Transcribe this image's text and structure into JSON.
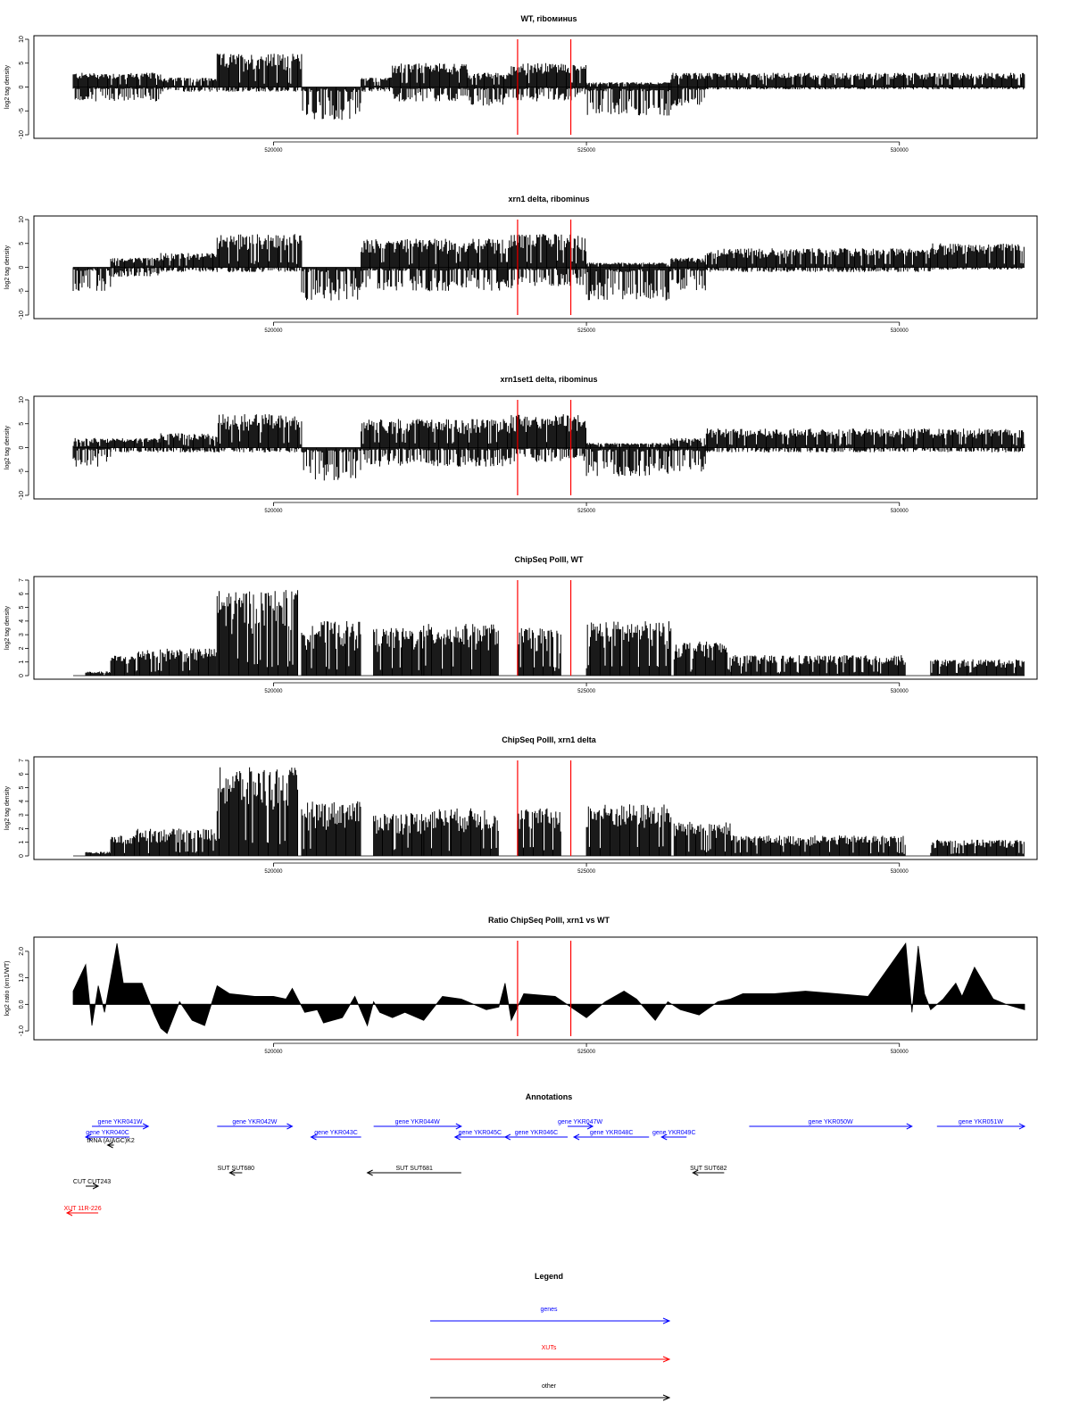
{
  "colors": {
    "gene": "#0000ff",
    "xut": "#ff0000",
    "other": "#000000",
    "marker": "#ff0000",
    "signal": "#000000"
  },
  "x_range": [
    516800,
    532000
  ],
  "x_ticks": [
    520000,
    525000,
    530000
  ],
  "markers": [
    523900,
    524750
  ],
  "chart_data": [
    {
      "type": "bar",
      "title": "WT, riboминus",
      "ylabel": "log2 tag density",
      "ylim": [
        -10,
        10
      ],
      "yticks": [
        -10,
        -5,
        0,
        5,
        10
      ],
      "segments": [
        [
          516800,
          518200,
          3,
          -3
        ],
        [
          518200,
          519100,
          2,
          -1
        ],
        [
          519100,
          520450,
          7,
          -1
        ],
        [
          520450,
          521400,
          0,
          -7
        ],
        [
          521400,
          521900,
          2,
          -1
        ],
        [
          521900,
          523100,
          5,
          -3
        ],
        [
          523100,
          523800,
          3,
          -4
        ],
        [
          523800,
          525000,
          5,
          -3
        ],
        [
          525000,
          526350,
          1,
          -6
        ],
        [
          526350,
          526900,
          3,
          -4
        ],
        [
          526900,
          532000,
          3,
          -0.5
        ]
      ]
    },
    {
      "type": "bar",
      "title": "xrn1 delta, ribominus",
      "ylabel": "log2 tag density",
      "ylim": [
        -10,
        10
      ],
      "yticks": [
        -10,
        -5,
        0,
        5,
        10
      ],
      "segments": [
        [
          516800,
          517400,
          0,
          -5
        ],
        [
          517400,
          518200,
          2,
          -2
        ],
        [
          518200,
          519100,
          3,
          -1
        ],
        [
          519100,
          520450,
          7,
          -1
        ],
        [
          520450,
          521400,
          0,
          -7
        ],
        [
          521400,
          523800,
          6,
          -5
        ],
        [
          523800,
          525000,
          7,
          -4
        ],
        [
          525000,
          526350,
          1,
          -7
        ],
        [
          526350,
          526900,
          2,
          -5
        ],
        [
          526900,
          530500,
          4,
          -1
        ],
        [
          530500,
          532000,
          5,
          -0.5
        ]
      ]
    },
    {
      "type": "bar",
      "title": "xrn1set1 delta, ribominus",
      "ylabel": "log2 tag density",
      "ylim": [
        -10,
        10
      ],
      "yticks": [
        -10,
        -5,
        0,
        5,
        10
      ],
      "segments": [
        [
          516800,
          517400,
          2,
          -4
        ],
        [
          517400,
          518200,
          2,
          -1
        ],
        [
          518200,
          519100,
          3,
          -1
        ],
        [
          519100,
          520450,
          7,
          -1
        ],
        [
          520450,
          521400,
          0,
          -7
        ],
        [
          521400,
          523800,
          6,
          -4
        ],
        [
          523800,
          525000,
          7,
          -3
        ],
        [
          525000,
          526350,
          1,
          -6
        ],
        [
          526350,
          526900,
          2,
          -5
        ],
        [
          526900,
          532000,
          4,
          -1
        ]
      ]
    },
    {
      "type": "bar",
      "title": "ChipSeq PolII, WT",
      "ylabel": "log2 tag density",
      "ylim": [
        0,
        7
      ],
      "yticks": [
        0,
        1,
        2,
        3,
        4,
        5,
        6,
        7
      ],
      "segments": [
        [
          516800,
          517000,
          0,
          0
        ],
        [
          517000,
          517400,
          0.3,
          0
        ],
        [
          517400,
          517800,
          1.5,
          0
        ],
        [
          517800,
          519100,
          2,
          0
        ],
        [
          519100,
          520400,
          6.3,
          0
        ],
        [
          520450,
          521400,
          4,
          0
        ],
        [
          521600,
          522400,
          3.5,
          0
        ],
        [
          522400,
          523600,
          3.8,
          0
        ],
        [
          523900,
          524600,
          3.5,
          0
        ],
        [
          525000,
          526350,
          4,
          0
        ],
        [
          526400,
          527300,
          2.5,
          0
        ],
        [
          527300,
          530100,
          1.5,
          0
        ],
        [
          530500,
          532000,
          1.2,
          0
        ]
      ]
    },
    {
      "type": "bar",
      "title": "ChipSeq PolII, xrn1 delta",
      "ylabel": "log2 tag density",
      "ylim": [
        0,
        7
      ],
      "yticks": [
        0,
        1,
        2,
        3,
        4,
        5,
        6,
        7
      ],
      "segments": [
        [
          516800,
          517000,
          0,
          0
        ],
        [
          517000,
          517400,
          0.3,
          0
        ],
        [
          517400,
          517800,
          1.5,
          0
        ],
        [
          517800,
          519100,
          2,
          0
        ],
        [
          519100,
          520400,
          6.5,
          0
        ],
        [
          520450,
          521400,
          4,
          0
        ],
        [
          521600,
          522400,
          3.2,
          0
        ],
        [
          522400,
          523600,
          3.5,
          0
        ],
        [
          523900,
          524600,
          3.5,
          0
        ],
        [
          525000,
          526350,
          3.8,
          0
        ],
        [
          526400,
          527300,
          2.5,
          0
        ],
        [
          527300,
          530100,
          1.5,
          0
        ],
        [
          530500,
          532000,
          1.2,
          0
        ]
      ]
    },
    {
      "type": "area",
      "title": "Ratio ChipSeq PolII, xrn1 vs WT",
      "ylabel": "log2 ratio (xrn1/WT)",
      "ylim": [
        -1.2,
        2.4
      ],
      "yticks": [
        -1.0,
        0.0,
        1.0,
        2.0
      ],
      "x": [
        516800,
        517000,
        517100,
        517200,
        517300,
        517500,
        517600,
        517700,
        517900,
        518100,
        518200,
        518300,
        518500,
        518700,
        518900,
        519100,
        519300,
        519700,
        520000,
        520200,
        520300,
        520500,
        520700,
        520800,
        521100,
        521300,
        521500,
        521600,
        521700,
        521900,
        522100,
        522400,
        522700,
        523000,
        523400,
        523600,
        523700,
        523800,
        524000,
        524500,
        525000,
        525300,
        525600,
        525800,
        526100,
        526300,
        526500,
        526800,
        527100,
        527300,
        527500,
        528000,
        528500,
        529000,
        529500,
        530100,
        530200,
        530300,
        530400,
        530500,
        530700,
        530900,
        531000,
        531200,
        531400,
        531500,
        531700,
        532000
      ],
      "y": [
        0.5,
        1.5,
        -0.8,
        0.7,
        -0.3,
        2.3,
        0.8,
        0.8,
        0.8,
        -0.4,
        -0.9,
        -1.1,
        0.1,
        -0.6,
        -0.8,
        0.7,
        0.4,
        0.3,
        0.3,
        0.2,
        0.6,
        -0.3,
        -0.2,
        -0.7,
        -0.5,
        0.3,
        -0.8,
        0.1,
        -0.3,
        -0.5,
        -0.3,
        -0.6,
        0.3,
        0.2,
        -0.2,
        -0.1,
        0.8,
        -0.6,
        0.4,
        0.3,
        -0.5,
        0.1,
        0.5,
        0.2,
        -0.6,
        0.1,
        -0.2,
        -0.4,
        0.1,
        0.2,
        0.4,
        0.4,
        0.5,
        0.4,
        0.3,
        2.3,
        -0.3,
        2.2,
        0.4,
        -0.2,
        0.2,
        0.8,
        0.3,
        1.4,
        0.6,
        0.2,
        0.0,
        -0.2
      ]
    }
  ],
  "annotations": {
    "title": "Annotations",
    "items": [
      {
        "label": "gene YKR041W",
        "type": "gene",
        "strand": "+",
        "start": 517100,
        "end": 518000,
        "row": 0,
        "label_side": "above"
      },
      {
        "label": "gene YKR040C",
        "type": "gene",
        "strand": "-",
        "start": 517000,
        "end": 517700,
        "row": 1,
        "label_side": "above"
      },
      {
        "label": "tRNA (A/AGC)K2",
        "type": "other",
        "strand": "-",
        "start": 517350,
        "end": 517450,
        "row": 2,
        "label_side": "above"
      },
      {
        "label": "gene YKR042W",
        "type": "gene",
        "strand": "+",
        "start": 519100,
        "end": 520300,
        "row": 0,
        "label_side": "above"
      },
      {
        "label": "gene YKR043C",
        "type": "gene",
        "strand": "-",
        "start": 520600,
        "end": 521400,
        "row": 1,
        "label_side": "above"
      },
      {
        "label": "gene YKR044W",
        "type": "gene",
        "strand": "+",
        "start": 521600,
        "end": 523000,
        "row": 0,
        "label_side": "above"
      },
      {
        "label": "gene YKR045C",
        "type": "gene",
        "strand": "-",
        "start": 522900,
        "end": 523700,
        "row": 1,
        "label_side": "above"
      },
      {
        "label": "gene YKR046C",
        "type": "gene",
        "strand": "-",
        "start": 523700,
        "end": 524700,
        "row": 1,
        "label_side": "above"
      },
      {
        "label": "gene YKR047W",
        "type": "gene",
        "strand": "+",
        "start": 524700,
        "end": 525100,
        "row": 0,
        "label_side": "above"
      },
      {
        "label": "gene YKR048C",
        "type": "gene",
        "strand": "-",
        "start": 524800,
        "end": 526000,
        "row": 1,
        "label_side": "above"
      },
      {
        "label": "gene YKR049C",
        "type": "gene",
        "strand": "-",
        "start": 526200,
        "end": 526600,
        "row": 1,
        "label_side": "above"
      },
      {
        "label": "gene YKR050W",
        "type": "gene",
        "strand": "+",
        "start": 527600,
        "end": 530200,
        "row": 0,
        "label_side": "above"
      },
      {
        "label": "gene YKR051W",
        "type": "gene",
        "strand": "+",
        "start": 530600,
        "end": 532000,
        "row": 0,
        "label_side": "above"
      },
      {
        "label": "SUT SUT680",
        "type": "other",
        "strand": "-",
        "start": 519300,
        "end": 519500,
        "row": 3,
        "label_side": "above"
      },
      {
        "label": "SUT SUT681",
        "type": "other",
        "strand": "-",
        "start": 521500,
        "end": 523000,
        "row": 3,
        "label_side": "above"
      },
      {
        "label": "SUT SUT682",
        "type": "other",
        "strand": "-",
        "start": 526700,
        "end": 527200,
        "row": 3,
        "label_side": "above"
      },
      {
        "label": "CUT CUT243",
        "type": "other",
        "strand": "+",
        "start": 517000,
        "end": 517200,
        "row": 4,
        "label_side": "above"
      },
      {
        "label": "XUT 11R-226",
        "type": "xut",
        "strand": "-",
        "start": 516700,
        "end": 517200,
        "row": 5,
        "label_side": "above"
      }
    ]
  },
  "legend": {
    "title": "Legend",
    "items": [
      {
        "label": "genes",
        "type": "gene"
      },
      {
        "label": "XUTs",
        "type": "xut"
      },
      {
        "label": "other",
        "type": "other"
      }
    ]
  }
}
